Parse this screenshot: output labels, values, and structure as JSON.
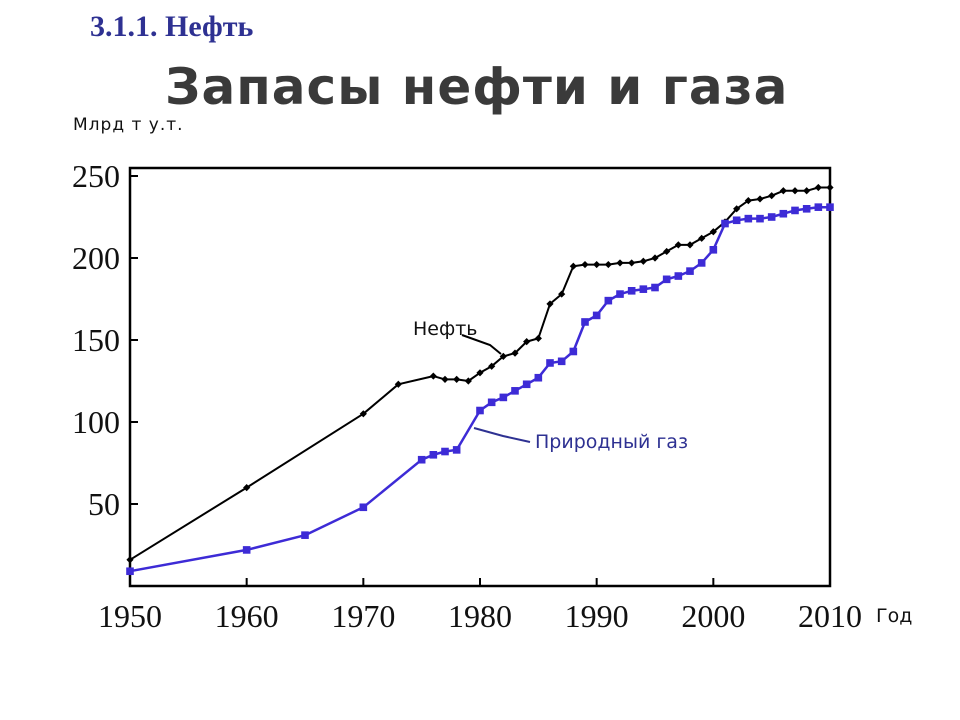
{
  "header": {
    "section": "3.1.1. Нефть",
    "title": "Запасы нефти и газа"
  },
  "chart_data": {
    "type": "line",
    "title": "Запасы нефти и газа",
    "ylabel": "Млрд т у.т.",
    "xlabel": "Год",
    "xlim": [
      1950,
      2010
    ],
    "ylim": [
      0,
      250
    ],
    "xticks": [
      1950,
      1960,
      1970,
      1980,
      1990,
      2000,
      2010
    ],
    "yticks": [
      50,
      100,
      150,
      200,
      250
    ],
    "grid": false,
    "series": [
      {
        "name": "Нефть",
        "color": "#000000",
        "marker": "diamond",
        "points": [
          [
            1950,
            16
          ],
          [
            1960,
            60
          ],
          [
            1970,
            105
          ],
          [
            1973,
            123
          ],
          [
            1976,
            128
          ],
          [
            1977,
            126
          ],
          [
            1978,
            126
          ],
          [
            1979,
            125
          ],
          [
            1980,
            130
          ],
          [
            1981,
            134
          ],
          [
            1982,
            140
          ],
          [
            1983,
            142
          ],
          [
            1984,
            149
          ],
          [
            1985,
            151
          ],
          [
            1986,
            172
          ],
          [
            1987,
            178
          ],
          [
            1988,
            195
          ],
          [
            1989,
            196
          ],
          [
            1990,
            196
          ],
          [
            1991,
            196
          ],
          [
            1992,
            197
          ],
          [
            1993,
            197
          ],
          [
            1994,
            198
          ],
          [
            1995,
            200
          ],
          [
            1996,
            204
          ],
          [
            1997,
            208
          ],
          [
            1998,
            208
          ],
          [
            1999,
            212
          ],
          [
            2000,
            216
          ],
          [
            2001,
            222
          ],
          [
            2002,
            230
          ],
          [
            2003,
            235
          ],
          [
            2004,
            236
          ],
          [
            2005,
            238
          ],
          [
            2006,
            241
          ],
          [
            2007,
            241
          ],
          [
            2008,
            241
          ],
          [
            2009,
            243
          ],
          [
            2010,
            243
          ]
        ]
      },
      {
        "name": "Природный газ",
        "color": "#3d2bd6",
        "marker": "square",
        "points": [
          [
            1950,
            9
          ],
          [
            1960,
            22
          ],
          [
            1965,
            31
          ],
          [
            1970,
            48
          ],
          [
            1975,
            77
          ],
          [
            1976,
            80
          ],
          [
            1977,
            82
          ],
          [
            1978,
            83
          ],
          [
            1980,
            107
          ],
          [
            1981,
            112
          ],
          [
            1982,
            115
          ],
          [
            1983,
            119
          ],
          [
            1984,
            123
          ],
          [
            1985,
            127
          ],
          [
            1986,
            136
          ],
          [
            1987,
            137
          ],
          [
            1988,
            143
          ],
          [
            1989,
            161
          ],
          [
            1990,
            165
          ],
          [
            1991,
            174
          ],
          [
            1992,
            178
          ],
          [
            1993,
            180
          ],
          [
            1994,
            181
          ],
          [
            1995,
            182
          ],
          [
            1996,
            187
          ],
          [
            1997,
            189
          ],
          [
            1998,
            192
          ],
          [
            1999,
            197
          ],
          [
            2000,
            205
          ],
          [
            2001,
            221
          ],
          [
            2002,
            223
          ],
          [
            2003,
            224
          ],
          [
            2004,
            224
          ],
          [
            2005,
            225
          ],
          [
            2006,
            227
          ],
          [
            2007,
            229
          ],
          [
            2008,
            230
          ],
          [
            2009,
            231
          ],
          [
            2010,
            231
          ]
        ]
      }
    ],
    "annotations": [
      {
        "text": "Нефть",
        "series": 0
      },
      {
        "text": "Природный газ",
        "series": 1
      }
    ]
  }
}
